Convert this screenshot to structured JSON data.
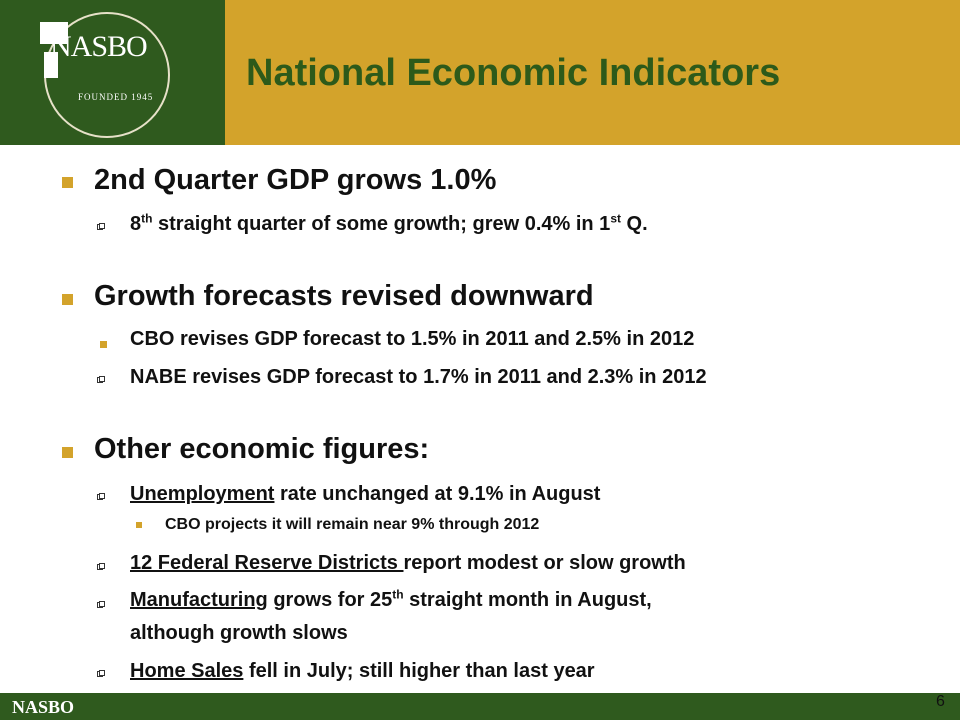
{
  "header": {
    "logo_text": "NASBO",
    "logo_sub": "FOUNDED 1945",
    "title": "National Economic Indicators"
  },
  "bullets": {
    "b1": "2nd Quarter GDP grows 1.0%",
    "b1_s1_pre": "8",
    "b1_s1_sup1": "th",
    "b1_s1_mid": " straight quarter of some growth; grew 0.4% in 1",
    "b1_s1_sup2": "st",
    "b1_s1_post": " Q.",
    "b2": "Growth forecasts revised downward",
    "b2_s1": "CBO revises GDP forecast to 1.5% in 2011 and 2.5% in 2012",
    "b2_s2": "NABE revises GDP forecast to 1.7% in 2011 and 2.3% in 2012",
    "b3": "Other economic figures:",
    "b3_s1_u": "Unemployment",
    "b3_s1_rest": " rate unchanged at 9.1% in August",
    "b3_s1_sub": "CBO projects it will remain near 9% through 2012",
    "b3_s2_u": "12 Federal Reserve Districts ",
    "b3_s2_rest": "report modest or slow growth",
    "b3_s3_u": "Manufacturing",
    "b3_s3_mid": " grows for 25",
    "b3_s3_sup": "th",
    "b3_s3_post": " straight month in August,",
    "b3_s3_line2": "although growth slows",
    "b3_s4_u": "Home Sales",
    "b3_s4_rest": " fell in July; still higher than last year"
  },
  "footer": {
    "name": "NASBO",
    "page": "6"
  },
  "colors": {
    "green": "#2f5a1e",
    "gold": "#d3a32b",
    "title_green": "#2d5a1a"
  }
}
